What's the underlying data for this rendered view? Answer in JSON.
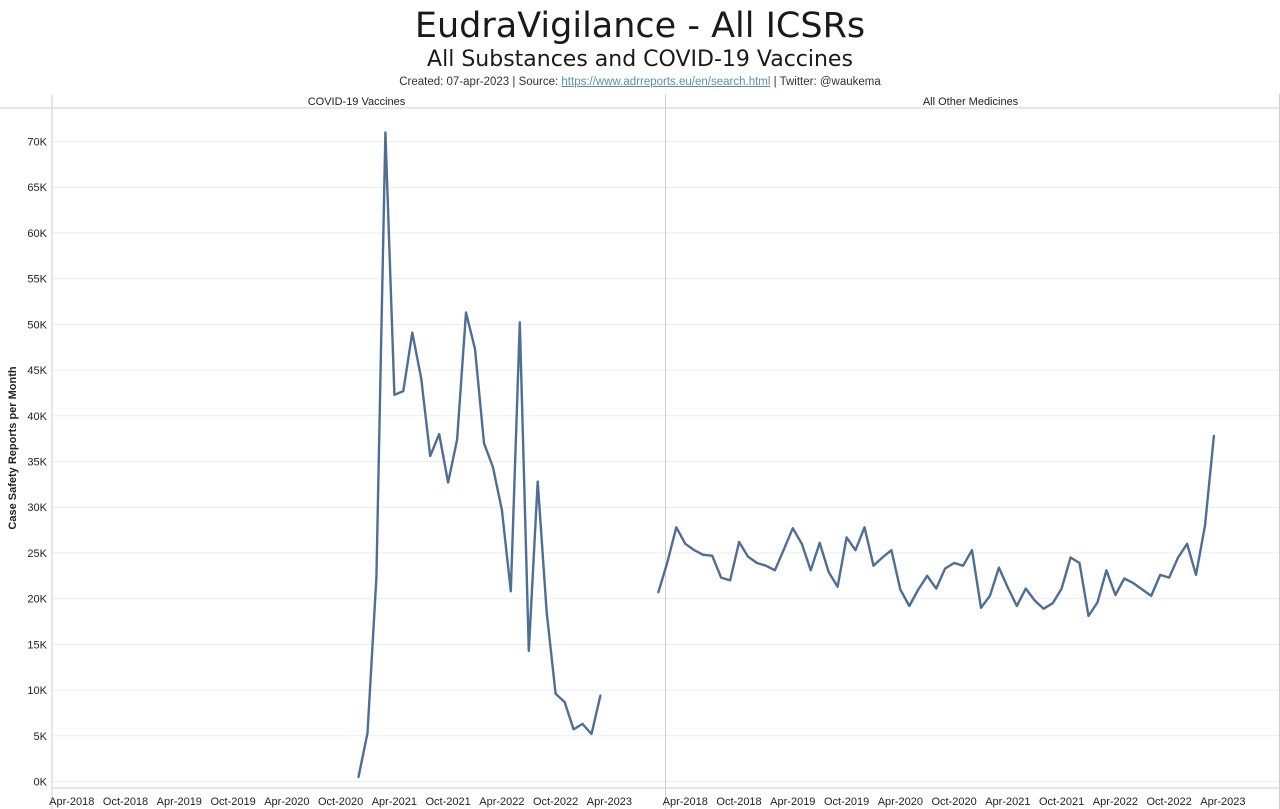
{
  "header": {
    "title": "EudraVigilance - All ICSRs",
    "subtitle": "All Substances and COVID-19 Vaccines",
    "caption_prefix": "Created: 07-apr-2023 | Source: ",
    "caption_link": "https://www.adrreports.eu/en/search.html",
    "caption_suffix": " | Twitter: @waukema"
  },
  "colors": {
    "line": "#4e6e96",
    "grid": "#ececec",
    "axis": "#cfcfcf"
  },
  "chart_data": {
    "type": "line",
    "ylabel": "Case Safety Reports per Month",
    "ylim": [
      0,
      73000
    ],
    "yticks": [
      0,
      5000,
      10000,
      15000,
      20000,
      25000,
      30000,
      35000,
      40000,
      45000,
      50000,
      55000,
      60000,
      65000,
      70000
    ],
    "ytick_labels": [
      "0K",
      "5K",
      "10K",
      "15K",
      "20K",
      "25K",
      "30K",
      "35K",
      "40K",
      "45K",
      "50K",
      "55K",
      "60K",
      "65K",
      "70K"
    ],
    "xlim": [
      "2017-11",
      "2023-05"
    ],
    "xticks": [
      "2018-04",
      "2018-10",
      "2019-04",
      "2019-10",
      "2020-04",
      "2020-10",
      "2021-04",
      "2021-10",
      "2022-04",
      "2022-10",
      "2023-04"
    ],
    "xtick_labels": [
      "Apr-2018",
      "Oct-2018",
      "Apr-2019",
      "Oct-2019",
      "Apr-2020",
      "Oct-2020",
      "Apr-2021",
      "Oct-2021",
      "Apr-2022",
      "Oct-2022",
      "Apr-2023"
    ],
    "grid": true,
    "panels": [
      {
        "name": "COVID-19 Vaccines",
        "x": [
          "2020-12",
          "2021-01",
          "2021-02",
          "2021-03",
          "2021-04",
          "2021-05",
          "2021-06",
          "2021-07",
          "2021-08",
          "2021-09",
          "2021-10",
          "2021-11",
          "2021-12",
          "2022-01",
          "2022-02",
          "2022-03",
          "2022-04",
          "2022-05",
          "2022-06",
          "2022-07",
          "2022-08",
          "2022-09",
          "2022-10",
          "2022-11",
          "2022-12",
          "2023-01",
          "2023-02",
          "2023-03"
        ],
        "values": [
          500,
          5300,
          22300,
          71000,
          42300,
          42700,
          49100,
          44100,
          35600,
          38000,
          32700,
          37400,
          51300,
          47300,
          37000,
          34400,
          29700,
          20800,
          50200,
          14300,
          32800,
          18500,
          9600,
          8700,
          5700,
          6300,
          5200,
          9400
        ]
      },
      {
        "name": "All Other Medicines",
        "x": [
          "2018-01",
          "2018-02",
          "2018-03",
          "2018-04",
          "2018-05",
          "2018-06",
          "2018-07",
          "2018-08",
          "2018-09",
          "2018-10",
          "2018-11",
          "2018-12",
          "2019-01",
          "2019-02",
          "2019-03",
          "2019-04",
          "2019-05",
          "2019-06",
          "2019-07",
          "2019-08",
          "2019-09",
          "2019-10",
          "2019-11",
          "2019-12",
          "2020-01",
          "2020-02",
          "2020-03",
          "2020-04",
          "2020-05",
          "2020-06",
          "2020-07",
          "2020-08",
          "2020-09",
          "2020-10",
          "2020-11",
          "2020-12",
          "2021-01",
          "2021-02",
          "2021-03",
          "2021-04",
          "2021-05",
          "2021-06",
          "2021-07",
          "2021-08",
          "2021-09",
          "2021-10",
          "2021-11",
          "2021-12",
          "2022-01",
          "2022-02",
          "2022-03",
          "2022-04",
          "2022-05",
          "2022-06",
          "2022-07",
          "2022-08",
          "2022-09",
          "2022-10",
          "2022-11",
          "2022-12",
          "2023-01",
          "2023-02",
          "2023-03"
        ],
        "values": [
          20700,
          24000,
          27800,
          26000,
          25300,
          24800,
          24700,
          22300,
          22000,
          26200,
          24600,
          23900,
          23600,
          23100,
          25400,
          27700,
          26000,
          23100,
          26100,
          22900,
          21300,
          26700,
          25300,
          27800,
          23600,
          24500,
          25300,
          21000,
          19200,
          21000,
          22500,
          21100,
          23300,
          23900,
          23600,
          25300,
          19000,
          20300,
          23400,
          21200,
          19200,
          21100,
          19800,
          18900,
          19500,
          21100,
          24500,
          23900,
          18100,
          19600,
          23100,
          20400,
          22200,
          21700,
          21000,
          20300,
          22600,
          22300,
          24500,
          26000,
          22600,
          28000,
          37800
        ]
      }
    ]
  }
}
